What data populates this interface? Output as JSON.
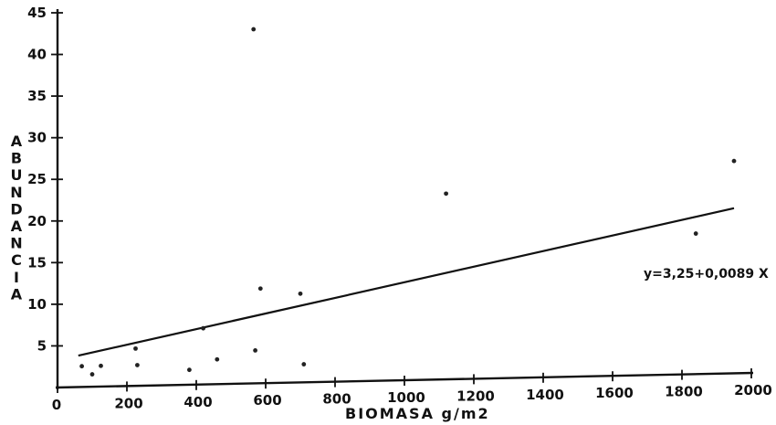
{
  "chart_data": {
    "type": "scatter",
    "xlabel": "BIOMASA g/m2",
    "ylabel": "ABUNDANCIA",
    "xlim": [
      0,
      2000
    ],
    "ylim": [
      0,
      45
    ],
    "x_ticks": [
      0,
      200,
      400,
      600,
      800,
      1000,
      1200,
      1400,
      1600,
      1800,
      2000
    ],
    "x_tick_labels": [
      "0",
      "200",
      "400",
      "600",
      "800",
      "1000",
      "1200",
      "1400",
      "1600",
      "1800",
      "2000"
    ],
    "y_ticks": [
      5,
      10,
      15,
      20,
      25,
      30,
      35,
      40,
      45
    ],
    "y_tick_labels": [
      "5",
      "10",
      "15",
      "20",
      "25",
      "30",
      "35",
      "40",
      "45"
    ],
    "grid": false,
    "points": [
      {
        "x": 70,
        "y": 2.5
      },
      {
        "x": 100,
        "y": 1.5
      },
      {
        "x": 125,
        "y": 2.5
      },
      {
        "x": 225,
        "y": 4.5
      },
      {
        "x": 230,
        "y": 2.5
      },
      {
        "x": 380,
        "y": 1.8
      },
      {
        "x": 420,
        "y": 6.8
      },
      {
        "x": 460,
        "y": 3.0
      },
      {
        "x": 565,
        "y": 43.0
      },
      {
        "x": 570,
        "y": 4.0
      },
      {
        "x": 585,
        "y": 11.5
      },
      {
        "x": 700,
        "y": 10.8
      },
      {
        "x": 710,
        "y": 2.2
      },
      {
        "x": 1120,
        "y": 22.8
      },
      {
        "x": 1840,
        "y": 17.5
      },
      {
        "x": 1950,
        "y": 26.5
      }
    ],
    "regression": {
      "equation": "y=3,25+0,0089 X",
      "intercept": 3.25,
      "slope": 0.0089,
      "x_range": [
        60,
        1950
      ]
    }
  }
}
